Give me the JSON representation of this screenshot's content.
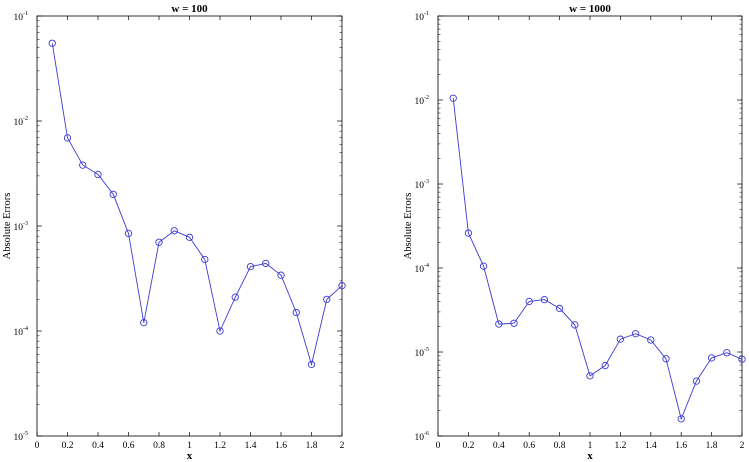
{
  "chart_data": [
    {
      "type": "line",
      "title": "w = 100",
      "xlabel": "x",
      "ylabel": "Absolute Errors",
      "yscale": "log",
      "xlim": [
        0,
        2
      ],
      "ylim": [
        1e-05,
        0.1
      ],
      "xticks": [
        "0",
        "0.2",
        "0.4",
        "0.6",
        "0.8",
        "1",
        "1.2",
        "1.4",
        "1.6",
        "1.8",
        "2"
      ],
      "yticks": [
        {
          "base": "10",
          "exp": "-5"
        },
        {
          "base": "10",
          "exp": "-4"
        },
        {
          "base": "10",
          "exp": "-3"
        },
        {
          "base": "10",
          "exp": "-2"
        },
        {
          "base": "10",
          "exp": "-1"
        }
      ],
      "grid": false,
      "marker": "circle",
      "line_color": "#3b3bd6",
      "series": [
        {
          "x": [
            0.1,
            0.2,
            0.3,
            0.4,
            0.5,
            0.6,
            0.7,
            0.8,
            0.9,
            1.0,
            1.1,
            1.2,
            1.3,
            1.4,
            1.5,
            1.6,
            1.7,
            1.8,
            1.9,
            2.0
          ],
          "values": [
            0.055,
            0.0069,
            0.0038,
            0.0031,
            0.002,
            0.00085,
            0.00012,
            0.0007,
            0.0009,
            0.00078,
            0.00048,
            0.0001,
            0.00021,
            0.00041,
            0.00044,
            0.00034,
            0.00015,
            4.8e-05,
            0.0002,
            0.00027
          ]
        }
      ]
    },
    {
      "type": "line",
      "title": "w = 1000",
      "xlabel": "x",
      "ylabel": "Absolute Errors",
      "yscale": "log",
      "xlim": [
        0,
        2
      ],
      "ylim": [
        1e-06,
        0.1
      ],
      "xticks": [
        "0",
        "0.2",
        "0.4",
        "0.6",
        "0.8",
        "1",
        "1.2",
        "1.4",
        "1.6",
        "1.8",
        "2"
      ],
      "yticks": [
        {
          "base": "10",
          "exp": "-6"
        },
        {
          "base": "10",
          "exp": "-5"
        },
        {
          "base": "10",
          "exp": "-4"
        },
        {
          "base": "10",
          "exp": "-3"
        },
        {
          "base": "10",
          "exp": "-2"
        },
        {
          "base": "10",
          "exp": "-1"
        }
      ],
      "grid": false,
      "marker": "circle",
      "line_color": "#3b3bd6",
      "series": [
        {
          "x": [
            0.1,
            0.2,
            0.3,
            0.4,
            0.5,
            0.6,
            0.7,
            0.8,
            0.9,
            1.0,
            1.1,
            1.2,
            1.3,
            1.4,
            1.5,
            1.6,
            1.7,
            1.8,
            1.9,
            2.0
          ],
          "values": [
            0.0105,
            0.00026,
            0.000105,
            2.15e-05,
            2.2e-05,
            4e-05,
            4.2e-05,
            3.3e-05,
            2.1e-05,
            5.2e-06,
            6.9e-06,
            1.42e-05,
            1.65e-05,
            1.39e-05,
            8.3e-06,
            1.6e-06,
            4.5e-06,
            8.5e-06,
            9.8e-06,
            8.2e-06
          ]
        }
      ]
    }
  ]
}
